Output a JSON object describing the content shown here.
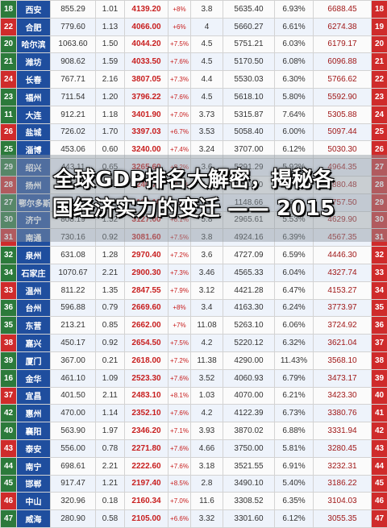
{
  "headline": {
    "line1": "全球GDP排名大解密，揭秘各",
    "line2": "国经济实力的变迁 —— 2015"
  },
  "rows": [
    {
      "l": "18",
      "c": "西安",
      "v1": "855.29",
      "v2": "1.01",
      "v3": "4139.20",
      "p": "+8%",
      "v4": "3.8",
      "v5": "5635.40",
      "v6": "6.93%",
      "v7": "6688.45",
      "r": "18"
    },
    {
      "l": "22",
      "c": "合肥",
      "v1": "779.60",
      "v2": "1.13",
      "v3": "4066.00",
      "p": "+6%",
      "v4": "4",
      "v5": "5660.27",
      "v6": "6.61%",
      "v7": "6274.38",
      "r": "19"
    },
    {
      "l": "20",
      "c": "哈尔滨",
      "v1": "1063.60",
      "v2": "1.50",
      "v3": "4044.20",
      "p": "+7.5%",
      "v4": "4.5",
      "v5": "5751.21",
      "v6": "6.03%",
      "v7": "6179.17",
      "r": "20"
    },
    {
      "l": "21",
      "c": "潍坊",
      "v1": "908.62",
      "v2": "1.59",
      "v3": "4033.50",
      "p": "+7.6%",
      "v4": "4.5",
      "v5": "5170.50",
      "v6": "6.08%",
      "v7": "6096.88",
      "r": "21"
    },
    {
      "l": "24",
      "c": "长春",
      "v1": "767.71",
      "v2": "2.16",
      "v3": "3807.05",
      "p": "+7.3%",
      "v4": "4.4",
      "v5": "5530.03",
      "v6": "6.30%",
      "v7": "5766.62",
      "r": "22"
    },
    {
      "l": "23",
      "c": "福州",
      "v1": "711.54",
      "v2": "1.20",
      "v3": "3796.22",
      "p": "+7.6%",
      "v4": "4.5",
      "v5": "5618.10",
      "v6": "5.80%",
      "v7": "5592.90",
      "r": "23"
    },
    {
      "l": "11",
      "c": "大连",
      "v1": "912.21",
      "v2": "1.18",
      "v3": "3401.90",
      "p": "+7.0%",
      "v4": "3.73",
      "v5": "5315.87",
      "v6": "7.64%",
      "v7": "5305.88",
      "r": "24"
    },
    {
      "l": "26",
      "c": "盐城",
      "v1": "726.02",
      "v2": "1.70",
      "v3": "3397.03",
      "p": "+6.7%",
      "v4": "3.53",
      "v5": "5058.40",
      "v6": "6.00%",
      "v7": "5097.44",
      "r": "25"
    },
    {
      "l": "25",
      "c": "淄博",
      "v1": "453.06",
      "v2": "0.60",
      "v3": "3240.00",
      "p": "+7.4%",
      "v4": "3.24",
      "v5": "3707.00",
      "v6": "6.12%",
      "v7": "5030.30",
      "r": "26"
    },
    {
      "l": "29",
      "c": "绍兴",
      "v1": "443.11",
      "v2": "0.65",
      "v3": "3265.60",
      "p": "+8.2%",
      "v4": "3.6",
      "v5": "5291.29",
      "v6": "5.92%",
      "v7": "4964.35",
      "r": "27"
    },
    {
      "l": "28",
      "c": "扬州",
      "v1": "445.98",
      "v2": "0.66",
      "v3": "3240.70",
      "p": "+8.2%",
      "v4": "3.6",
      "v5": "5110.30",
      "v6": "6.06%",
      "v7": "4880.48",
      "r": "28"
    },
    {
      "l": "27",
      "c": "鄂尔多斯",
      "v1": "317.04",
      "v2": "0.94",
      "v3": "3163.10",
      "p": "+7.6%",
      "v4": "16.21",
      "v5": "1148.66",
      "v6": "4.63%",
      "v7": "4757.50",
      "r": "29"
    },
    {
      "l": "30",
      "c": "济宁",
      "v1": "808.19",
      "v2": "1.52",
      "v3": "3127.00",
      "p": "+8.1%",
      "v4": "5.8",
      "v5": "2965.61",
      "v6": "5.53%",
      "v7": "4629.90",
      "r": "30"
    },
    {
      "l": "31",
      "c": "南通",
      "v1": "730.16",
      "v2": "0.92",
      "v3": "3081.60",
      "p": "+7.5%",
      "v4": "3.8",
      "v5": "4924.16",
      "v6": "6.39%",
      "v7": "4567.35",
      "r": "31"
    },
    {
      "l": "32",
      "c": "泉州",
      "v1": "631.08",
      "v2": "1.28",
      "v3": "2970.40",
      "p": "+7.2%",
      "v4": "3.6",
      "v5": "4727.09",
      "v6": "6.59%",
      "v7": "4446.30",
      "r": "32"
    },
    {
      "l": "34",
      "c": "石家庄",
      "v1": "1070.67",
      "v2": "2.21",
      "v3": "2900.30",
      "p": "+7.3%",
      "v4": "3.46",
      "v5": "4565.33",
      "v6": "6.04%",
      "v7": "4327.74",
      "r": "33"
    },
    {
      "l": "33",
      "c": "温州",
      "v1": "811.22",
      "v2": "1.35",
      "v3": "2847.55",
      "p": "+7.9%",
      "v4": "3.12",
      "v5": "4421.28",
      "v6": "6.47%",
      "v7": "4153.27",
      "r": "34"
    },
    {
      "l": "36",
      "c": "台州",
      "v1": "596.88",
      "v2": "0.79",
      "v3": "2669.60",
      "p": "+8%",
      "v4": "3.4",
      "v5": "4163.30",
      "v6": "6.24%",
      "v7": "3773.97",
      "r": "35"
    },
    {
      "l": "35",
      "c": "东营",
      "v1": "213.21",
      "v2": "0.85",
      "v3": "2662.00",
      "p": "+7%",
      "v4": "11.08",
      "v5": "5263.10",
      "v6": "6.06%",
      "v7": "3724.92",
      "r": "36"
    },
    {
      "l": "38",
      "c": "嘉兴",
      "v1": "450.17",
      "v2": "0.92",
      "v3": "2654.50",
      "p": "+7.5%",
      "v4": "4.2",
      "v5": "5220.12",
      "v6": "6.32%",
      "v7": "3621.04",
      "r": "37"
    },
    {
      "l": "39",
      "c": "厦门",
      "v1": "367.00",
      "v2": "0.21",
      "v3": "2618.00",
      "p": "+7.2%",
      "v4": "11.38",
      "v5": "4290.00",
      "v6": "11.43%",
      "v7": "3568.10",
      "r": "38"
    },
    {
      "l": "16",
      "c": "金华",
      "v1": "461.10",
      "v2": "1.09",
      "v3": "2523.30",
      "p": "+7.6%",
      "v4": "3.52",
      "v5": "4060.93",
      "v6": "6.79%",
      "v7": "3473.17",
      "r": "39"
    },
    {
      "l": "37",
      "c": "宜昌",
      "v1": "401.50",
      "v2": "2.11",
      "v3": "2483.10",
      "p": "+8.1%",
      "v4": "1.03",
      "v5": "4070.00",
      "v6": "6.21%",
      "v7": "3423.30",
      "r": "40"
    },
    {
      "l": "42",
      "c": "惠州",
      "v1": "470.00",
      "v2": "1.14",
      "v3": "2352.10",
      "p": "+7.6%",
      "v4": "4.2",
      "v5": "4122.39",
      "v6": "6.73%",
      "v7": "3380.76",
      "r": "41"
    },
    {
      "l": "40",
      "c": "襄阳",
      "v1": "563.90",
      "v2": "1.97",
      "v3": "2346.20",
      "p": "+7.1%",
      "v4": "3.93",
      "v5": "3870.02",
      "v6": "6.88%",
      "v7": "3331.94",
      "r": "42"
    },
    {
      "l": "43",
      "c": "泰安",
      "v1": "556.00",
      "v2": "0.78",
      "v3": "2271.80",
      "p": "+7.6%",
      "v4": "4.66",
      "v5": "3750.00",
      "v6": "5.81%",
      "v7": "3280.45",
      "r": "43"
    },
    {
      "l": "44",
      "c": "南宁",
      "v1": "698.61",
      "v2": "2.21",
      "v3": "2222.60",
      "p": "+7.6%",
      "v4": "3.18",
      "v5": "3521.55",
      "v6": "6.91%",
      "v7": "3232.31",
      "r": "44"
    },
    {
      "l": "45",
      "c": "邯郸",
      "v1": "917.47",
      "v2": "1.21",
      "v3": "2197.40",
      "p": "+8.5%",
      "v4": "2.8",
      "v5": "3490.10",
      "v6": "5.40%",
      "v7": "3186.22",
      "r": "45"
    },
    {
      "l": "46",
      "c": "中山",
      "v1": "320.96",
      "v2": "0.18",
      "v3": "2160.34",
      "p": "+7.0%",
      "v4": "11.6",
      "v5": "3308.52",
      "v6": "6.35%",
      "v7": "3104.03",
      "r": "46"
    },
    {
      "l": "47",
      "c": "威海",
      "v1": "280.90",
      "v2": "0.58",
      "v3": "2105.00",
      "p": "+6.6%",
      "v4": "3.32",
      "v5": "3301.60",
      "v6": "6.12%",
      "v7": "3055.35",
      "r": "47"
    }
  ]
}
